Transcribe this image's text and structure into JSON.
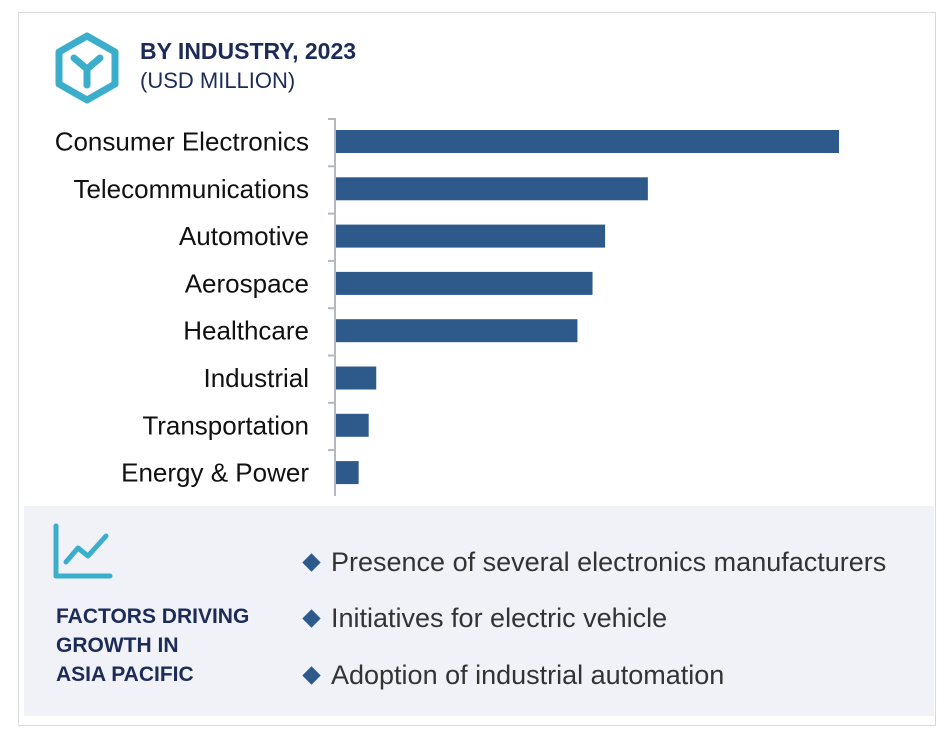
{
  "header": {
    "title": "BY INDUSTRY, 2023",
    "subtitle": "(USD MILLION)",
    "logo_icon": "hexagon-y-icon"
  },
  "colors": {
    "bar": "#2d5a8a",
    "title": "#1c2b57",
    "accent": "#3aaecb",
    "panel_bg": "#f0f2f7"
  },
  "chart_data": {
    "type": "bar",
    "orientation": "horizontal",
    "title": "BY INDUSTRY, 2023",
    "subtitle": "(USD MILLION)",
    "categories": [
      "Consumer Electronics",
      "Telecommunications",
      "Automotive",
      "Aerospace",
      "Healthcare",
      "Industrial",
      "Transportation",
      "Energy & Power"
    ],
    "values": [
      100,
      62,
      53.5,
      51,
      48,
      8,
      6.5,
      4.5
    ],
    "xlim": [
      0,
      100
    ],
    "grid": false,
    "legend": "none"
  },
  "factors": {
    "icon": "trend-chart-icon",
    "title_lines": [
      "FACTORS DRIVING",
      "GROWTH IN",
      "ASIA PACIFIC"
    ],
    "items": [
      "Presence of several electronics manufacturers",
      "Initiatives for electric vehicle",
      "Adoption of industrial automation"
    ]
  }
}
